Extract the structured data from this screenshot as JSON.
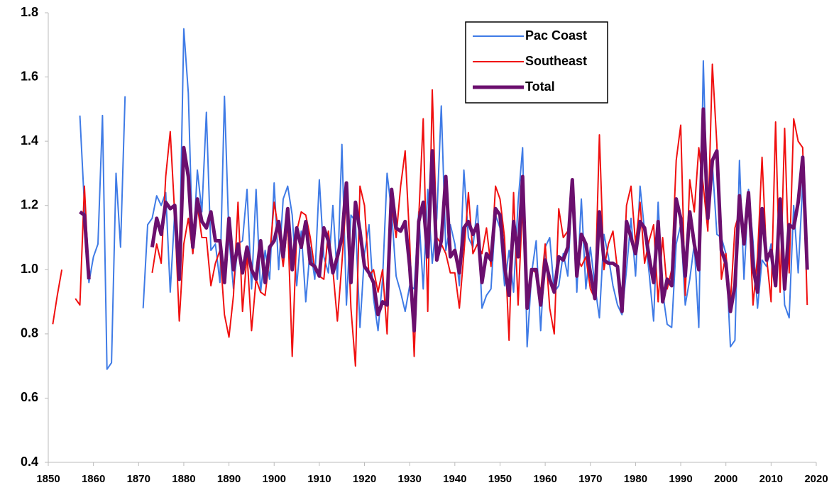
{
  "chart_data": {
    "type": "line",
    "x": [
      1851,
      1852,
      1853,
      1854,
      1855,
      1856,
      1857,
      1858,
      1859,
      1860,
      1861,
      1862,
      1863,
      1864,
      1865,
      1866,
      1867,
      1868,
      1869,
      1870,
      1871,
      1872,
      1873,
      1874,
      1875,
      1876,
      1877,
      1878,
      1879,
      1880,
      1881,
      1882,
      1883,
      1884,
      1885,
      1886,
      1887,
      1888,
      1889,
      1890,
      1891,
      1892,
      1893,
      1894,
      1895,
      1896,
      1897,
      1898,
      1899,
      1900,
      1901,
      1902,
      1903,
      1904,
      1905,
      1906,
      1907,
      1908,
      1909,
      1910,
      1911,
      1912,
      1913,
      1914,
      1915,
      1916,
      1917,
      1918,
      1919,
      1920,
      1921,
      1922,
      1923,
      1924,
      1925,
      1926,
      1927,
      1928,
      1929,
      1930,
      1931,
      1932,
      1933,
      1934,
      1935,
      1936,
      1937,
      1938,
      1939,
      1940,
      1941,
      1942,
      1943,
      1944,
      1945,
      1946,
      1947,
      1948,
      1949,
      1950,
      1951,
      1952,
      1953,
      1954,
      1955,
      1956,
      1957,
      1958,
      1959,
      1960,
      1961,
      1962,
      1963,
      1964,
      1965,
      1966,
      1967,
      1968,
      1969,
      1970,
      1971,
      1972,
      1973,
      1974,
      1975,
      1976,
      1977,
      1978,
      1979,
      1980,
      1981,
      1982,
      1983,
      1984,
      1985,
      1986,
      1987,
      1988,
      1989,
      1990,
      1991,
      1992,
      1993,
      1994,
      1995,
      1996,
      1997,
      1998,
      1999,
      2000,
      2001,
      2002,
      2003,
      2004,
      2005,
      2006,
      2007,
      2008,
      2009,
      2010,
      2011,
      2012,
      2013,
      2014,
      2015,
      2016,
      2017,
      2018
    ],
    "series": [
      {
        "name": "Pac Coast",
        "color": "#3f7be6",
        "width": 2,
        "values": [
          null,
          null,
          null,
          null,
          null,
          null,
          1.48,
          1.2,
          0.96,
          1.04,
          1.08,
          1.48,
          0.69,
          0.71,
          1.3,
          1.07,
          1.54,
          null,
          null,
          null,
          0.88,
          1.14,
          1.16,
          1.23,
          1.2,
          1.24,
          0.93,
          1.18,
          1.0,
          1.75,
          1.55,
          1.05,
          1.31,
          1.18,
          1.49,
          1.06,
          1.08,
          0.96,
          1.54,
          1.1,
          0.94,
          1.08,
          1.09,
          1.25,
          0.94,
          1.25,
          0.93,
          1.06,
          0.97,
          1.27,
          1.0,
          1.22,
          1.26,
          1.17,
          0.95,
          1.12,
          0.9,
          1.07,
          0.97,
          1.28,
          1.04,
          0.99,
          1.2,
          0.97,
          1.39,
          0.89,
          1.17,
          1.15,
          0.82,
          1.05,
          1.14,
          0.91,
          0.81,
          0.97,
          1.3,
          1.18,
          0.98,
          0.93,
          0.87,
          0.95,
          0.94,
          1.18,
          0.94,
          1.25,
          1.02,
          1.16,
          1.51,
          1.06,
          1.14,
          1.08,
          0.95,
          1.31,
          1.1,
          1.07,
          1.2,
          0.88,
          0.92,
          0.94,
          1.17,
          1.13,
          0.95,
          1.06,
          0.93,
          1.21,
          1.38,
          0.76,
          0.99,
          1.09,
          0.81,
          1.07,
          1.1,
          0.93,
          0.95,
          1.05,
          0.98,
          1.26,
          0.93,
          1.22,
          0.94,
          1.07,
          0.95,
          0.85,
          1.11,
          1.04,
          0.95,
          0.89,
          0.86,
          1.0,
          1.16,
          0.98,
          1.26,
          1.12,
          0.99,
          0.84,
          1.21,
          0.93,
          0.83,
          0.82,
          1.08,
          1.14,
          0.89,
          0.97,
          1.08,
          0.82,
          1.65,
          1.13,
          1.33,
          1.11,
          1.1,
          1.05,
          0.76,
          0.78,
          1.34,
          0.97,
          1.25,
          1.09,
          0.88,
          1.03,
          1.01,
          1.08,
          0.97,
          1.2,
          0.89,
          0.85,
          1.2,
          0.99,
          1.27,
          1.0
        ]
      },
      {
        "name": "Southeast",
        "color": "#f01010",
        "width": 2,
        "values": [
          0.83,
          0.92,
          1.0,
          null,
          null,
          0.91,
          0.89,
          1.26,
          0.98,
          null,
          null,
          null,
          null,
          null,
          null,
          null,
          null,
          null,
          null,
          null,
          null,
          null,
          0.99,
          1.08,
          1.02,
          1.29,
          1.43,
          1.17,
          0.84,
          1.08,
          1.16,
          1.05,
          1.2,
          1.1,
          1.1,
          0.95,
          1.02,
          1.06,
          0.86,
          0.79,
          0.92,
          1.21,
          0.87,
          1.05,
          0.81,
          0.97,
          0.93,
          0.92,
          1.04,
          1.21,
          1.12,
          1.01,
          1.15,
          0.73,
          1.12,
          1.18,
          1.17,
          1.1,
          1.0,
          0.98,
          0.97,
          1.12,
          1.0,
          0.84,
          1.02,
          1.23,
          0.88,
          0.7,
          1.26,
          1.2,
          0.98,
          1.0,
          0.93,
          1.0,
          0.8,
          1.2,
          1.1,
          1.26,
          1.37,
          1.09,
          0.73,
          1.16,
          1.47,
          0.87,
          1.56,
          1.1,
          1.08,
          1.05,
          0.99,
          0.99,
          0.88,
          1.05,
          1.24,
          1.05,
          1.08,
          1.05,
          1.13,
          1.01,
          1.26,
          1.22,
          1.1,
          0.78,
          1.24,
          0.89,
          1.21,
          0.9,
          1.0,
          0.99,
          0.93,
          1.08,
          0.88,
          0.8,
          1.19,
          1.1,
          1.12,
          1.26,
          1.04,
          1.01,
          1.04,
          0.94,
          0.91,
          1.42,
          1.0,
          1.08,
          1.12,
          1.0,
          0.88,
          1.2,
          1.26,
          1.08,
          1.21,
          1.02,
          1.09,
          1.14,
          0.9,
          1.1,
          0.94,
          1.0,
          1.34,
          1.45,
          0.92,
          1.28,
          1.18,
          1.38,
          1.26,
          1.12,
          1.64,
          1.39,
          0.97,
          1.05,
          0.9,
          1.13,
          1.18,
          1.09,
          1.23,
          0.89,
          1.04,
          1.35,
          1.04,
          0.9,
          1.46,
          0.93,
          1.44,
          0.99,
          1.47,
          1.4,
          1.38,
          0.89
        ]
      },
      {
        "name": "Total",
        "color": "#6b0f6e",
        "width": 5,
        "values": [
          null,
          null,
          null,
          null,
          null,
          null,
          1.18,
          1.17,
          0.97,
          null,
          null,
          null,
          null,
          null,
          null,
          null,
          null,
          null,
          null,
          null,
          null,
          null,
          1.07,
          1.16,
          1.11,
          1.21,
          1.19,
          1.2,
          0.97,
          1.38,
          1.29,
          1.07,
          1.22,
          1.15,
          1.13,
          1.18,
          1.09,
          1.09,
          0.96,
          1.16,
          1.0,
          1.08,
          0.99,
          1.07,
          1.0,
          0.97,
          1.09,
          0.96,
          1.07,
          1.09,
          1.15,
          1.04,
          1.19,
          1.0,
          1.13,
          1.07,
          1.15,
          1.02,
          1.01,
          0.98,
          1.13,
          1.09,
          0.99,
          1.04,
          1.1,
          1.27,
          0.96,
          1.21,
          1.12,
          1.01,
          0.99,
          0.96,
          0.86,
          0.9,
          0.89,
          1.25,
          1.13,
          1.12,
          1.15,
          1.01,
          0.81,
          1.15,
          1.21,
          1.04,
          1.37,
          1.03,
          1.09,
          1.29,
          1.04,
          1.06,
          0.99,
          1.13,
          1.15,
          1.11,
          1.14,
          0.96,
          1.05,
          1.03,
          1.19,
          1.17,
          1.01,
          0.92,
          1.15,
          1.04,
          1.29,
          0.88,
          1.0,
          1.0,
          0.89,
          1.03,
          0.97,
          0.93,
          1.04,
          1.03,
          1.07,
          1.28,
          0.98,
          1.11,
          1.08,
          0.99,
          0.91,
          1.18,
          1.03,
          1.02,
          1.02,
          1.01,
          0.87,
          1.15,
          1.1,
          1.05,
          1.15,
          1.13,
          1.04,
          0.96,
          1.15,
          0.9,
          0.97,
          0.95,
          1.22,
          1.16,
          0.98,
          1.18,
          1.08,
          1.0,
          1.5,
          1.16,
          1.34,
          1.37,
          1.06,
          1.02,
          0.87,
          0.95,
          1.23,
          1.08,
          1.24,
          1.01,
          0.93,
          1.19,
          1.03,
          1.06,
          0.95,
          1.22,
          0.94,
          1.14,
          1.13,
          1.21,
          1.35,
          1.0
        ]
      }
    ],
    "xlim": [
      1850,
      2020
    ],
    "xticks": [
      1850,
      1860,
      1870,
      1880,
      1890,
      1900,
      1910,
      1920,
      1930,
      1940,
      1950,
      1960,
      1970,
      1980,
      1990,
      2000,
      2010,
      2020
    ],
    "ylim": [
      0.4,
      1.8
    ],
    "yticks": [
      0.4,
      0.6,
      0.8,
      {
        "value": 1,
        "label": "1.0"
      },
      1.2,
      1.4,
      1.6,
      1.8
    ],
    "grid": false,
    "legend": "top-right"
  }
}
